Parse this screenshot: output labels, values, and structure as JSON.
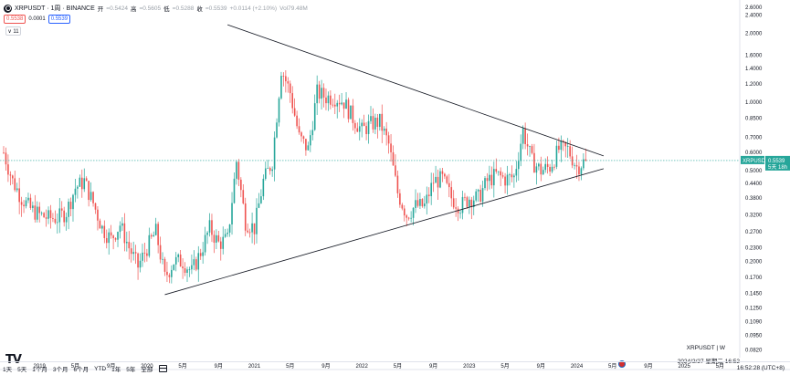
{
  "header": {
    "symbol": "XRPUSDT · 1周 · BINANCE",
    "open_label": "开",
    "open": "=0.5424",
    "high_label": "高",
    "high": "=0.5605",
    "low_label": "低",
    "low": "=0.5288",
    "close_label": "收",
    "close": "=0.5539",
    "change": "+0.0114 (+2.10%)",
    "volume": "Vol79.48M"
  },
  "quote": {
    "bid": "0.5538",
    "spread": "0.0001",
    "ask": "0.5539"
  },
  "collapse_button": "∨ 11",
  "watermark": "TV",
  "caption": {
    "symbol_line": "XRPUSDT | W",
    "date_line": "2024/2/27 星期二 16:52"
  },
  "bottom_bar": {
    "ranges": [
      "1天",
      "5天",
      "1个月",
      "3个月",
      "6个月",
      "YTD",
      "1年",
      "5年",
      "全部"
    ],
    "clock": "16:52:28 (UTC+8)"
  },
  "colors": {
    "up": "#26a69a",
    "down": "#ef5350",
    "trendline": "#131722",
    "price_line": "#26a69a",
    "price_tag_bg": "#26a69a"
  },
  "chart_data": {
    "type": "candlestick",
    "y_scale": "log",
    "ylim": [
      0.08,
      2.6
    ],
    "y_ticks": [
      "2.6000",
      "2.4000",
      "2.0000",
      "1.6000",
      "1.4000",
      "1.2000",
      "1.0000",
      "0.8500",
      "0.7000",
      "0.6000",
      "0.5000",
      "0.4400",
      "0.3800",
      "0.3200",
      "0.2700",
      "0.2300",
      "0.2000",
      "0.1700",
      "0.1450",
      "0.1250",
      "0.1090",
      "0.0950",
      "0.0820"
    ],
    "y_tick_values": [
      2.6,
      2.4,
      2.0,
      1.6,
      1.4,
      1.2,
      1.0,
      0.85,
      0.7,
      0.6,
      0.5,
      0.44,
      0.38,
      0.32,
      0.27,
      0.23,
      0.2,
      0.17,
      0.145,
      0.125,
      0.109,
      0.095,
      0.082
    ],
    "x_ticks": [
      "2019",
      "5月",
      "9月",
      "2020",
      "5月",
      "9月",
      "2021",
      "5月",
      "9月",
      "2022",
      "5月",
      "9月",
      "2023",
      "5月",
      "9月",
      "2024",
      "5月",
      "9月",
      "2025",
      "5月"
    ],
    "x_tick_dates": [
      "2019-01",
      "2019-05",
      "2019-09",
      "2020-01",
      "2020-05",
      "2020-09",
      "2021-01",
      "2021-05",
      "2021-09",
      "2022-01",
      "2022-05",
      "2022-09",
      "2023-01",
      "2023-05",
      "2023-09",
      "2024-01",
      "2024-05",
      "2024-09",
      "2025-01",
      "2025-05"
    ],
    "x_range": [
      "2018-09",
      "2025-07"
    ],
    "last_price": {
      "symbol": "XRPUSDT",
      "value": "0.5539",
      "countdown": "5天 18h"
    },
    "trendlines": [
      {
        "name": "upper",
        "from": {
          "date": "2020-10",
          "price": 2.18
        },
        "to": {
          "date": "2024-04",
          "price": 0.58
        }
      },
      {
        "name": "lower",
        "from": {
          "date": "2020-03",
          "price": 0.143
        },
        "to": {
          "date": "2024-04",
          "price": 0.51
        }
      }
    ],
    "weekly_path": [
      [
        "2018-09",
        0.6
      ],
      [
        "2018-10",
        0.45
      ],
      [
        "2018-11",
        0.38
      ],
      [
        "2018-12",
        0.34
      ],
      [
        "2019-01",
        0.32
      ],
      [
        "2019-02",
        0.31
      ],
      [
        "2019-03",
        0.31
      ],
      [
        "2019-04",
        0.33
      ],
      [
        "2019-05",
        0.42
      ],
      [
        "2019-06",
        0.45
      ],
      [
        "2019-07",
        0.36
      ],
      [
        "2019-08",
        0.28
      ],
      [
        "2019-09",
        0.25
      ],
      [
        "2019-10",
        0.29
      ],
      [
        "2019-11",
        0.23
      ],
      [
        "2019-12",
        0.19
      ],
      [
        "2020-01",
        0.23
      ],
      [
        "2020-02",
        0.27
      ],
      [
        "2020-03",
        0.17
      ],
      [
        "2020-04",
        0.2
      ],
      [
        "2020-05",
        0.2
      ],
      [
        "2020-06",
        0.18
      ],
      [
        "2020-07",
        0.22
      ],
      [
        "2020-08",
        0.28
      ],
      [
        "2020-09",
        0.24
      ],
      [
        "2020-10",
        0.25
      ],
      [
        "2020-11",
        0.55
      ],
      [
        "2020-12",
        0.3
      ],
      [
        "2021-01",
        0.28
      ],
      [
        "2021-02",
        0.45
      ],
      [
        "2021-03",
        0.55
      ],
      [
        "2021-04",
        1.4
      ],
      [
        "2021-05",
        1.1
      ],
      [
        "2021-06",
        0.7
      ],
      [
        "2021-07",
        0.62
      ],
      [
        "2021-08",
        1.1
      ],
      [
        "2021-09",
        1.05
      ],
      [
        "2021-10",
        1.05
      ],
      [
        "2021-11",
        1.0
      ],
      [
        "2021-12",
        0.85
      ],
      [
        "2022-01",
        0.75
      ],
      [
        "2022-02",
        0.8
      ],
      [
        "2022-03",
        0.82
      ],
      [
        "2022-04",
        0.65
      ],
      [
        "2022-05",
        0.4
      ],
      [
        "2022-06",
        0.32
      ],
      [
        "2022-07",
        0.35
      ],
      [
        "2022-08",
        0.35
      ],
      [
        "2022-09",
        0.45
      ],
      [
        "2022-10",
        0.46
      ],
      [
        "2022-11",
        0.38
      ],
      [
        "2022-12",
        0.35
      ],
      [
        "2023-01",
        0.38
      ],
      [
        "2023-02",
        0.38
      ],
      [
        "2023-03",
        0.45
      ],
      [
        "2023-04",
        0.48
      ],
      [
        "2023-05",
        0.46
      ],
      [
        "2023-06",
        0.47
      ],
      [
        "2023-07",
        0.75
      ],
      [
        "2023-08",
        0.55
      ],
      [
        "2023-09",
        0.5
      ],
      [
        "2023-10",
        0.52
      ],
      [
        "2023-11",
        0.62
      ],
      [
        "2023-12",
        0.62
      ],
      [
        "2024-01",
        0.52
      ],
      [
        "2024-02",
        0.554
      ]
    ]
  }
}
